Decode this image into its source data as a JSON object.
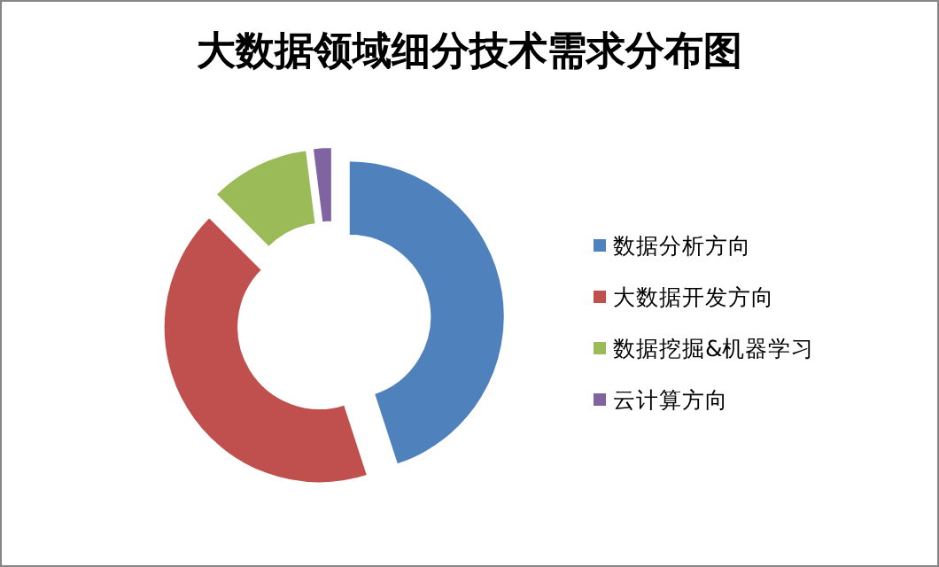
{
  "chart_data": {
    "type": "donut",
    "title": "大数据领域细分技术需求分布图",
    "categories": [
      "数据分析方向",
      "大数据开发方向",
      "数据挖掘&机器学习",
      "云计算方向"
    ],
    "values": [
      45,
      42.5,
      10.5,
      2
    ],
    "colors": [
      "#4f81bd",
      "#c0504d",
      "#9bbb59",
      "#8064a2"
    ],
    "legend": "right"
  }
}
